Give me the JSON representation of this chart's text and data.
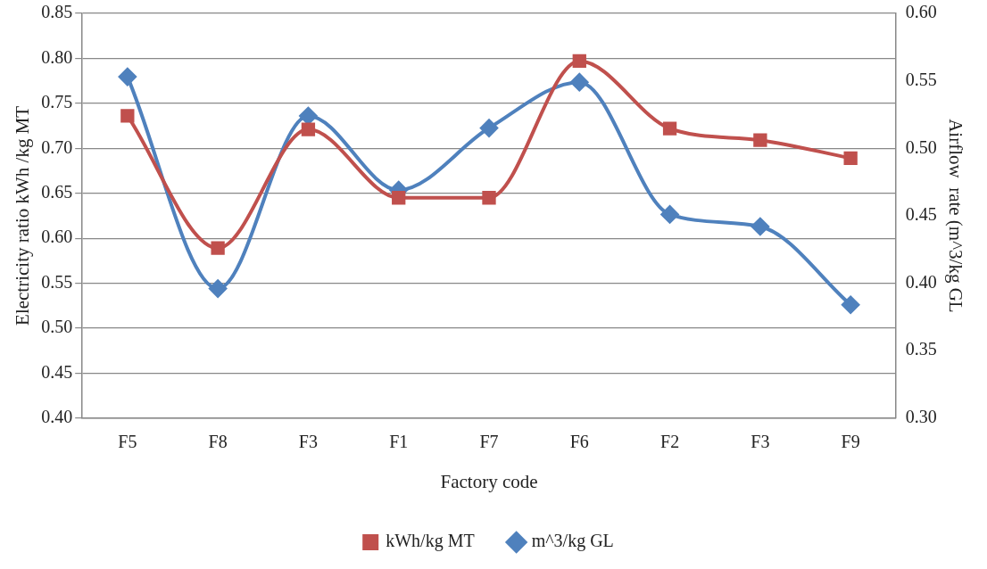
{
  "chart_data": {
    "type": "line",
    "xlabel": "Factory code",
    "ylabel": "Electricity ratio kWh /kg MT",
    "y2label": "Airflow  rate (m^3/kg GL",
    "categories": [
      "F5",
      "F8",
      "F3",
      "F1",
      "F7",
      "F6",
      "F2",
      "F3",
      "F9"
    ],
    "series": [
      {
        "name": "kWh/kg MT",
        "color": "#c0504d",
        "marker": "square",
        "values": [
          0.736,
          0.589,
          0.721,
          0.645,
          0.645,
          0.797,
          0.722,
          0.709,
          0.689
        ]
      },
      {
        "name": "m^3/kg GL",
        "color": "#4f81bd",
        "marker": "diamond",
        "axis": "y2",
        "values": [
          0.553,
          0.396,
          0.524,
          0.469,
          0.515,
          0.549,
          0.451,
          0.442,
          0.384
        ]
      }
    ],
    "ylim": [
      0.4,
      0.85
    ],
    "yticks": [
      {
        "value": 0.4,
        "label": "0.40"
      },
      {
        "value": 0.45,
        "label": "0.45"
      },
      {
        "value": 0.5,
        "label": "0.50"
      },
      {
        "value": 0.55,
        "label": "0.55"
      },
      {
        "value": 0.6,
        "label": "0.60"
      },
      {
        "value": 0.65,
        "label": "0.65"
      },
      {
        "value": 0.7,
        "label": "0.70"
      },
      {
        "value": 0.75,
        "label": "0.75"
      },
      {
        "value": 0.8,
        "label": "0.80"
      },
      {
        "value": 0.85,
        "label": "0.85"
      }
    ],
    "y2lim": [
      0.3,
      0.6
    ],
    "y2ticks": [
      {
        "value": 0.3,
        "label": "0.30"
      },
      {
        "value": 0.35,
        "label": "0.35"
      },
      {
        "value": 0.4,
        "label": "0.40"
      },
      {
        "value": 0.45,
        "label": "0.45"
      },
      {
        "value": 0.5,
        "label": "0.50"
      },
      {
        "value": 0.55,
        "label": "0.55"
      },
      {
        "value": 0.6,
        "label": "0.60"
      }
    ],
    "grid": "y",
    "legend": "bottom"
  }
}
